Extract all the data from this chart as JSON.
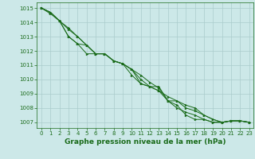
{
  "title": "Graphe pression niveau de la mer (hPa)",
  "background_color": "#cce8e8",
  "grid_color": "#aacccc",
  "line_color": "#1a6b1a",
  "marker_color": "#1a6b1a",
  "x_values": [
    0,
    1,
    2,
    3,
    4,
    5,
    6,
    7,
    8,
    9,
    10,
    11,
    12,
    13,
    14,
    15,
    16,
    17,
    18,
    19,
    20,
    21,
    22,
    23
  ],
  "series": {
    "max": [
      1015.0,
      1014.7,
      1014.1,
      1013.6,
      1013.0,
      1012.4,
      1011.8,
      1011.8,
      1011.3,
      1011.1,
      1010.7,
      1010.3,
      1009.8,
      1009.4,
      1008.5,
      1008.5,
      1008.2,
      1008.0,
      1007.5,
      1007.2,
      1007.0,
      1007.1,
      1007.1,
      1007.0
    ],
    "avg": [
      1015.0,
      1014.7,
      1014.1,
      1013.5,
      1013.0,
      1012.4,
      1011.8,
      1011.8,
      1011.3,
      1011.1,
      1010.7,
      1010.0,
      1009.5,
      1009.2,
      1008.8,
      1008.5,
      1008.0,
      1007.8,
      1007.5,
      1007.2,
      1007.0,
      1007.1,
      1007.1,
      1007.0
    ],
    "min": [
      1015.0,
      1014.7,
      1014.1,
      1013.0,
      1012.5,
      1011.8,
      1011.8,
      1011.8,
      1011.3,
      1011.1,
      1010.3,
      1009.7,
      1009.5,
      1009.2,
      1008.5,
      1008.0,
      1007.7,
      1007.5,
      1007.2,
      1007.0,
      1007.0,
      1007.1,
      1007.1,
      1007.0
    ],
    "inst": [
      1015.0,
      1014.6,
      1014.1,
      1013.0,
      1012.5,
      1012.4,
      1011.8,
      1011.8,
      1011.3,
      1011.1,
      1010.7,
      1009.7,
      1009.5,
      1009.5,
      1008.5,
      1008.2,
      1007.5,
      1007.2,
      1007.2,
      1007.0,
      1007.0,
      1007.1,
      1007.1,
      1007.0
    ]
  },
  "ylim": [
    1006.6,
    1015.4
  ],
  "yticks": [
    1007,
    1008,
    1009,
    1010,
    1011,
    1012,
    1013,
    1014,
    1015
  ],
  "xlim": [
    -0.5,
    23.5
  ],
  "xticks": [
    0,
    1,
    2,
    3,
    4,
    5,
    6,
    7,
    8,
    9,
    10,
    11,
    12,
    13,
    14,
    15,
    16,
    17,
    18,
    19,
    20,
    21,
    22,
    23
  ],
  "title_fontsize": 6.5,
  "tick_fontsize": 5.0,
  "marker_size": 2.0,
  "line_width": 0.7
}
